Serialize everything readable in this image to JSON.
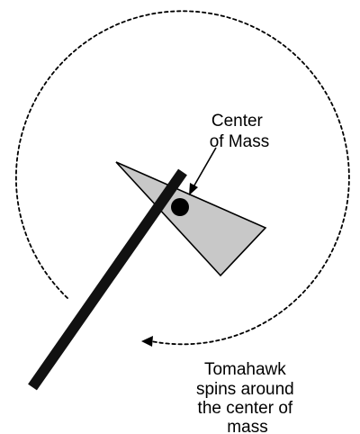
{
  "labels": {
    "center_of_mass": [
      "Center",
      "of Mass"
    ],
    "spin_caption": [
      "Tomahawk",
      "spins around",
      "the center of",
      "mass"
    ]
  },
  "colors": {
    "stroke": "#000000",
    "blade_fill": "#c8c8c8",
    "handle": "#111111",
    "center_dot": "#000000",
    "background": "#ffffff"
  }
}
